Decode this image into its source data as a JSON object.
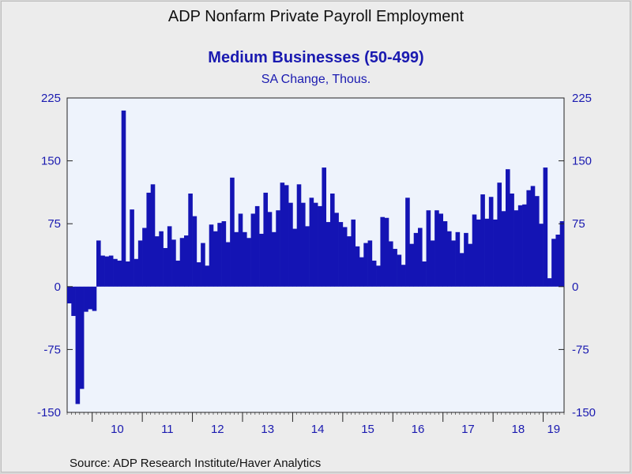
{
  "chart_data": {
    "type": "bar",
    "title": "ADP Nonfarm Private Payroll Employment",
    "subtitle": "Medium Businesses (50-499)",
    "units": "SA Change, Thous.",
    "source": "Source:  ADP Research Institute/Haver Analytics",
    "ylim": [
      -150,
      225
    ],
    "yticks": [
      225,
      150,
      75,
      0,
      -75,
      -150
    ],
    "xlabels": [
      "10",
      "11",
      "12",
      "13",
      "14",
      "15",
      "16",
      "17",
      "18",
      "19"
    ],
    "x_start": "2009-07",
    "bar_color": "#1414b4",
    "plot_background": "#eef3fc",
    "values": [
      -20,
      -35,
      -140,
      -122,
      -30,
      -27,
      -29,
      55,
      37,
      36,
      37,
      33,
      31,
      210,
      30,
      92,
      33,
      55,
      70,
      112,
      122,
      60,
      66,
      46,
      72,
      56,
      31,
      58,
      61,
      111,
      84,
      29,
      52,
      25,
      74,
      66,
      76,
      78,
      53,
      130,
      65,
      87,
      65,
      58,
      87,
      96,
      63,
      112,
      89,
      65,
      91,
      124,
      121,
      100,
      69,
      122,
      100,
      72,
      106,
      100,
      96,
      142,
      77,
      111,
      88,
      77,
      71,
      60,
      80,
      48,
      35,
      52,
      55,
      31,
      25,
      83,
      82,
      54,
      45,
      38,
      26,
      106,
      51,
      64,
      70,
      30,
      91,
      55,
      91,
      87,
      78,
      66,
      55,
      65,
      40,
      64,
      51,
      86,
      80,
      110,
      81,
      107,
      80,
      124,
      90,
      140,
      111,
      91,
      97,
      98,
      115,
      120,
      108,
      75,
      142,
      10,
      57,
      62,
      78
    ]
  }
}
